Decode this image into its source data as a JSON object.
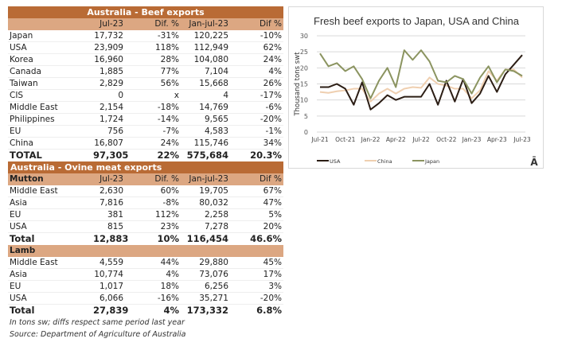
{
  "beef": {
    "title": "Australia - Beef exports",
    "headers": [
      "",
      "Jul-23",
      "Dif. %",
      "Jan-jul-23",
      "Dif %"
    ],
    "rows": [
      [
        "Japan",
        "17,732",
        "-31%",
        "120,225",
        "-10%"
      ],
      [
        "USA",
        "23,909",
        "118%",
        "112,949",
        "62%"
      ],
      [
        "Korea",
        "16,960",
        "28%",
        "104,080",
        "24%"
      ],
      [
        "Canada",
        "1,885",
        "77%",
        "7,104",
        "4%"
      ],
      [
        "Taiwan",
        "2,829",
        "56%",
        "15,668",
        "26%"
      ],
      [
        "CIS",
        "0",
        "x",
        "4",
        "-17%"
      ],
      [
        "Middle East",
        "2,154",
        "-18%",
        "14,769",
        "-6%"
      ],
      [
        "Philippines",
        "1,724",
        "-14%",
        "9,565",
        "-20%"
      ],
      [
        "EU",
        "756",
        "-7%",
        "4,583",
        "-1%"
      ],
      [
        "China",
        "16,807",
        "24%",
        "115,746",
        "34%"
      ]
    ],
    "total": [
      "TOTAL",
      "97,305",
      "22%",
      "575,684",
      "20.3%"
    ]
  },
  "ovine": {
    "title": "Australia - Ovine meat exports",
    "mutton": {
      "headers": [
        "Mutton",
        "Jul-23",
        "Dif. %",
        "Jan-jul-23",
        "Dif %"
      ],
      "rows": [
        [
          "Middle East",
          "2,630",
          "60%",
          "19,705",
          "67%"
        ],
        [
          "Asia",
          "7,816",
          "-8%",
          "80,032",
          "47%"
        ],
        [
          "EU",
          "381",
          "112%",
          "2,258",
          "5%"
        ],
        [
          "USA",
          "815",
          "23%",
          "7,278",
          "20%"
        ]
      ],
      "total": [
        "Total",
        "12,883",
        "10%",
        "116,454",
        "46.6%"
      ]
    },
    "lamb": {
      "headers": [
        "Lamb",
        "",
        "",
        "",
        ""
      ],
      "rows": [
        [
          "Middle East",
          "4,559",
          "44%",
          "29,880",
          "45%"
        ],
        [
          "Asia",
          "10,774",
          "4%",
          "73,076",
          "17%"
        ],
        [
          "EU",
          "1,017",
          "18%",
          "6,256",
          "3%"
        ],
        [
          "USA",
          "6,066",
          "-16%",
          "35,271",
          "-20%"
        ]
      ],
      "total": [
        "Total",
        "27,839",
        "4%",
        "173,332",
        "6.8%"
      ]
    }
  },
  "notes": [
    "In tons sw; diffs respect same period last year",
    "Source: Department of Agriculture of Australia"
  ],
  "chart_data": {
    "type": "line",
    "title": "Fresh beef exports to Japan, USA and China",
    "ylabel": "Thousand tons swt",
    "xlabel": "",
    "ylim": [
      0,
      30
    ],
    "yticks": [
      0,
      5,
      10,
      15,
      20,
      25,
      30
    ],
    "grid": true,
    "legend": "bottom",
    "x": [
      "Jul-21",
      "Aug-21",
      "Sep-21",
      "Oct-21",
      "Nov-21",
      "Dec-21",
      "Jan-22",
      "Feb-22",
      "Mar-22",
      "Apr-22",
      "May-22",
      "Jun-22",
      "Jul-22",
      "Aug-22",
      "Sep-22",
      "Oct-22",
      "Nov-22",
      "Dec-22",
      "Jan-23",
      "Feb-23",
      "Mar-23",
      "Apr-23",
      "May-23",
      "Jun-23",
      "Jul-23"
    ],
    "xticks": [
      "Jul-21",
      "Oct-21",
      "Jan-22",
      "Apr-22",
      "Jul-22",
      "Oct-22",
      "Jan-23",
      "Apr-23",
      "Jul-23"
    ],
    "series": [
      {
        "name": "USA",
        "color": "#2b1d14",
        "values": [
          14,
          14,
          15,
          13.5,
          8.5,
          15.5,
          7,
          9,
          11.5,
          10,
          11,
          11,
          11,
          15,
          8.5,
          16,
          9.5,
          16.5,
          9,
          12,
          17.5,
          12.5,
          18,
          21,
          24
        ]
      },
      {
        "name": "China",
        "color": "#efcfb0",
        "values": [
          12.5,
          12.2,
          12.7,
          13,
          13.5,
          13.5,
          9.5,
          12,
          13.5,
          12,
          13.5,
          14,
          13.8,
          17,
          15,
          14.5,
          13.5,
          13.5,
          10.5,
          13,
          19,
          16,
          19.5,
          19.5,
          17
        ]
      },
      {
        "name": "Japan",
        "color": "#8b9460",
        "values": [
          24.5,
          20.5,
          21.5,
          19,
          20.5,
          16.5,
          10.5,
          16,
          20,
          14,
          25.5,
          22.5,
          25.5,
          22,
          16,
          15.5,
          17.5,
          16.5,
          12,
          17,
          20.5,
          15.5,
          19.5,
          19,
          17.5
        ]
      }
    ]
  },
  "logo": "Ā"
}
